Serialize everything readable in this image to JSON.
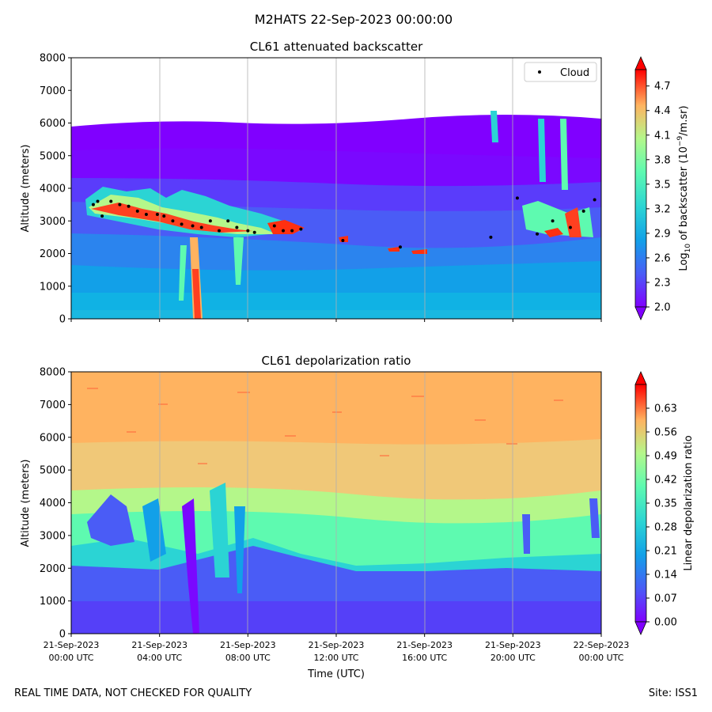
{
  "figure": {
    "suptitle": "M2HATS 22-Sep-2023 00:00:00",
    "footer_left": "REAL TIME DATA, NOT CHECKED FOR QUALITY",
    "footer_right": "Site: ISS1"
  },
  "chart_data": [
    {
      "type": "heatmap",
      "title": "CL61 attenuated backscatter",
      "ylabel": "Altitude (meters)",
      "ylim": [
        0,
        8000
      ],
      "yticks": [
        "0",
        "1000",
        "2000",
        "3000",
        "4000",
        "5000",
        "6000",
        "7000",
        "8000"
      ],
      "xlim_hours": [
        0,
        24
      ],
      "x_hours": [
        0,
        4,
        8,
        12,
        16,
        20,
        24
      ],
      "xticklabels": [],
      "colormap": "rainbow",
      "colorbar": {
        "label": "Log10 of backscatter (10^-9/m.sr)",
        "range": [
          2.0,
          4.9
        ],
        "ticks": [
          "2.0",
          "2.3",
          "2.6",
          "2.9",
          "3.2",
          "3.5",
          "3.8",
          "4.1",
          "4.4",
          "4.7"
        ],
        "extend": "both"
      },
      "legend": {
        "entries": [
          "Cloud"
        ],
        "location": "top-right"
      },
      "cloud_base_points": {
        "x_hours": [
          1.0,
          1.2,
          1.4,
          1.8,
          2.2,
          2.6,
          3.0,
          3.4,
          3.9,
          4.2,
          4.6,
          5.0,
          5.5,
          5.9,
          6.3,
          6.7,
          7.1,
          7.5,
          8.0,
          8.3,
          9.2,
          9.6,
          10.0,
          10.4,
          12.3,
          14.9,
          19.0,
          20.2,
          21.1,
          21.8,
          22.6,
          23.2,
          23.7
        ],
        "altitude_m": [
          3500,
          3600,
          3150,
          3600,
          3500,
          3450,
          3300,
          3200,
          3200,
          3150,
          3000,
          2900,
          2850,
          2800,
          3000,
          2700,
          3000,
          2800,
          2700,
          2650,
          2850,
          2700,
          2700,
          2750,
          2400,
          2200,
          2500,
          3700,
          2600,
          3000,
          2800,
          3300,
          3650
        ]
      }
    },
    {
      "type": "heatmap",
      "title": "CL61 depolarization ratio",
      "ylabel": "Altitude (meters)",
      "xlabel": "Time (UTC)",
      "ylim": [
        0,
        8000
      ],
      "yticks": [
        "0",
        "1000",
        "2000",
        "3000",
        "4000",
        "5000",
        "6000",
        "7000",
        "8000"
      ],
      "xlim_hours": [
        0,
        24
      ],
      "x_hours": [
        0,
        4,
        8,
        12,
        16,
        20,
        24
      ],
      "xticklabels": [
        [
          "21-Sep-2023",
          "00:00 UTC"
        ],
        [
          "21-Sep-2023",
          "04:00 UTC"
        ],
        [
          "21-Sep-2023",
          "08:00 UTC"
        ],
        [
          "21-Sep-2023",
          "12:00 UTC"
        ],
        [
          "21-Sep-2023",
          "16:00 UTC"
        ],
        [
          "21-Sep-2023",
          "20:00 UTC"
        ],
        [
          "22-Sep-2023",
          "00:00 UTC"
        ]
      ],
      "colormap": "rainbow",
      "colorbar": {
        "label": "Linear depolarization ratio",
        "range": [
          0.0,
          0.7
        ],
        "ticks": [
          "0.00",
          "0.07",
          "0.14",
          "0.21",
          "0.28",
          "0.35",
          "0.42",
          "0.49",
          "0.56",
          "0.63"
        ],
        "extend": "both"
      }
    }
  ]
}
